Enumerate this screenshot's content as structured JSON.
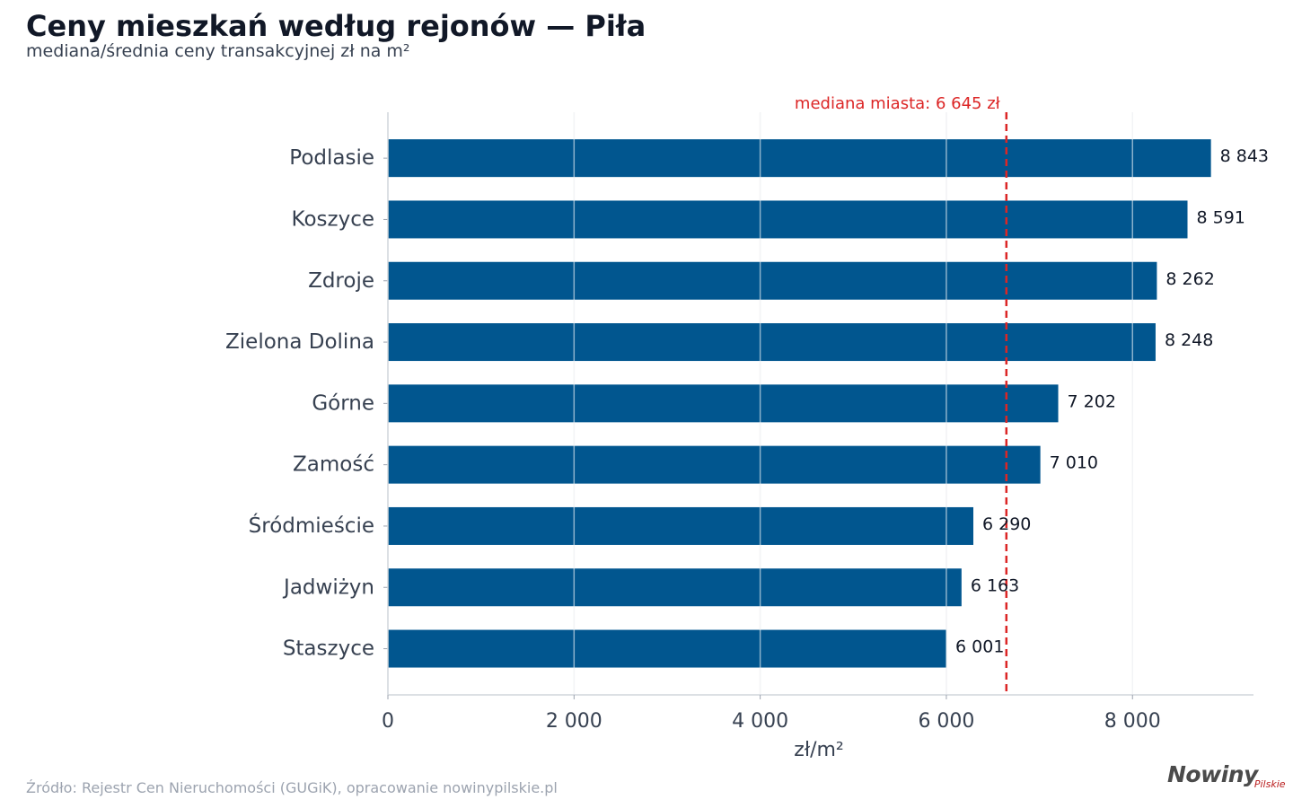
{
  "header": {
    "title": "Ceny mieszkań według rejonów — Piła",
    "subtitle": "mediana/średnia ceny transakcyjnej zł na m²"
  },
  "footer": {
    "source": "Źródło: Rejestr Cen Nieruchomości (GUGiK), opracowanie nowinypilskie.pl",
    "logo_main": "Nowiny",
    "logo_sub": "Pilskie"
  },
  "colors": {
    "bar": "#01568f",
    "median_line": "#dc2626",
    "grid": "#e5e7eb",
    "axis_text": "#374151",
    "label_text": "#111827"
  },
  "chart_data": {
    "type": "bar",
    "orientation": "horizontal",
    "categories": [
      "Podlasie",
      "Koszyce",
      "Zdroje",
      "Zielona Dolina",
      "Górne",
      "Zamość",
      "Śródmieście",
      "Jadwiżyn",
      "Staszyce"
    ],
    "values": [
      8843,
      8591,
      8262,
      8248,
      7202,
      7010,
      6290,
      6163,
      6001
    ],
    "value_labels": [
      "8 843",
      "8 591",
      "8 262",
      "8 248",
      "7 202",
      "7 010",
      "6 290",
      "6 163",
      "6 001"
    ],
    "xlabel": "zł/m²",
    "xlim": [
      0,
      9300
    ],
    "xticks": [
      0,
      2000,
      4000,
      6000,
      8000
    ],
    "xtick_labels": [
      "0",
      "2 000",
      "4 000",
      "6 000",
      "8 000"
    ],
    "grid": true,
    "reference_line": {
      "value": 6645,
      "label": "mediana miasta: 6 645 zł",
      "style": "dashed"
    }
  }
}
